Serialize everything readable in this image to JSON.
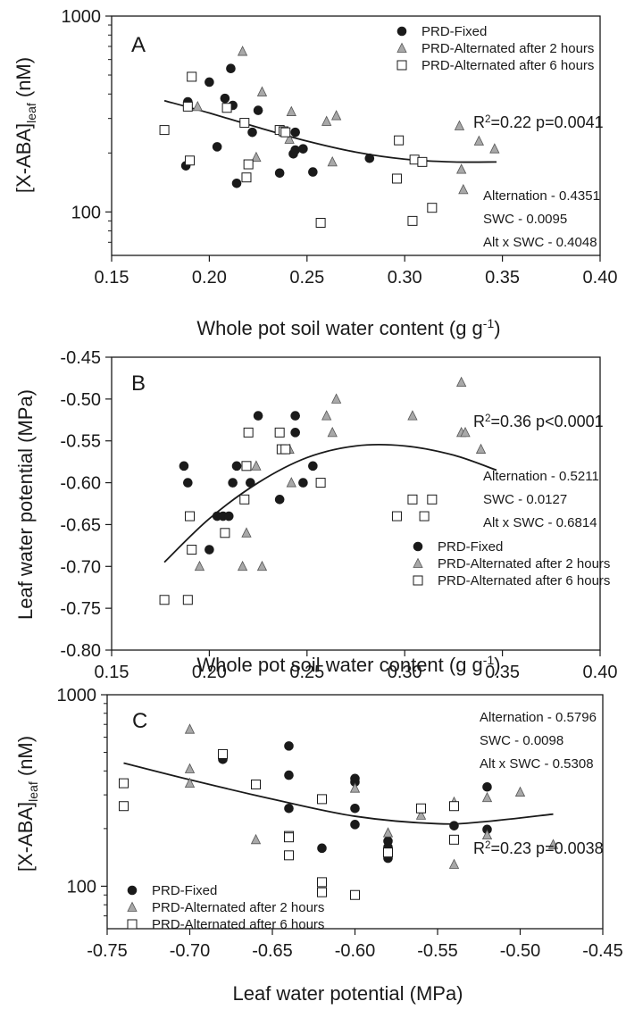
{
  "chart_data": [
    {
      "type": "scatter",
      "panel_label": "A",
      "xlabel": "Whole pot soil water content (g g⁻¹)",
      "ylabel": "[X-ABA]leaf (nM)",
      "yscale": "log",
      "xlim": [
        0.15,
        0.4
      ],
      "ylim": [
        60,
        1000
      ],
      "xticks": [
        0.15,
        0.2,
        0.25,
        0.3,
        0.35,
        0.4
      ],
      "xtick_labels": [
        "0.15",
        "0.20",
        "0.25",
        "0.30",
        "0.35",
        "0.40"
      ],
      "yticks": [
        100,
        1000
      ],
      "ytick_labels": [
        "100",
        "1000"
      ],
      "legend": {
        "position": "top-center",
        "entries": [
          "PRD-Fixed",
          "PRD-Alternated after 2 hours",
          "PRD-Alternated after 6 hours"
        ]
      },
      "annotations": [
        "R2=0.22 p=0.0041",
        "Alternation - 0.4351",
        "SWC - 0.0095",
        "Alt x SWC - 0.4048"
      ],
      "r2_label": {
        "prefix": "R",
        "sup": "2",
        "suffix": "=0.22 p=0.0041"
      },
      "stats": [
        "Alternation - 0.4351",
        "SWC - 0.0095",
        "Alt x SWC - 0.4048"
      ],
      "series": [
        {
          "name": "PRD-Fixed",
          "marker": "circle",
          "color": "#1a1a1a",
          "x": [
            0.188,
            0.189,
            0.2,
            0.204,
            0.208,
            0.211,
            0.212,
            0.214,
            0.222,
            0.225,
            0.236,
            0.243,
            0.244,
            0.244,
            0.248,
            0.253,
            0.282
          ],
          "y": [
            172,
            365,
            460,
            215,
            380,
            540,
            350,
            140,
            255,
            330,
            158,
            198,
            207,
            255,
            210,
            160,
            188
          ]
        },
        {
          "name": "PRD-Alternated after 2 hours",
          "marker": "triangle",
          "color": "#a8a8a8",
          "x": [
            0.194,
            0.217,
            0.224,
            0.227,
            0.241,
            0.242,
            0.26,
            0.263,
            0.265,
            0.328,
            0.329,
            0.33,
            0.338,
            0.346
          ],
          "y": [
            345,
            660,
            190,
            410,
            235,
            325,
            290,
            180,
            310,
            275,
            165,
            130,
            230,
            210
          ]
        },
        {
          "name": "PRD-Alternated after 6 hours",
          "marker": "square",
          "color": "#ffffff",
          "x": [
            0.177,
            0.189,
            0.19,
            0.191,
            0.209,
            0.218,
            0.219,
            0.22,
            0.236,
            0.238,
            0.239,
            0.257,
            0.296,
            0.297,
            0.304,
            0.305,
            0.309,
            0.314
          ],
          "y": [
            262,
            345,
            183,
            490,
            340,
            285,
            150,
            175,
            262,
            258,
            255,
            88,
            148,
            232,
            90,
            185,
            180,
            105
          ]
        }
      ],
      "fit": {
        "x": [
          0.177,
          0.2,
          0.225,
          0.25,
          0.275,
          0.3,
          0.325,
          0.347
        ],
        "y": [
          370,
          320,
          270,
          230,
          202,
          186,
          180,
          180
        ]
      }
    },
    {
      "type": "scatter",
      "panel_label": "B",
      "xlabel": "Whole pot soil water content (g g⁻¹)",
      "ylabel": "Leaf water potential (MPa)",
      "yscale": "linear",
      "xlim": [
        0.15,
        0.4
      ],
      "ylim": [
        -0.8,
        -0.45
      ],
      "xticks": [
        0.15,
        0.2,
        0.25,
        0.3,
        0.35,
        0.4
      ],
      "xtick_labels": [
        "0.15",
        "0.20",
        "0.25",
        "0.30",
        "0.35",
        "0.40"
      ],
      "yticks": [
        -0.8,
        -0.75,
        -0.7,
        -0.65,
        -0.6,
        -0.55,
        -0.5,
        -0.45
      ],
      "ytick_labels": [
        "-0.80",
        "-0.75",
        "-0.70",
        "-0.65",
        "-0.60",
        "-0.55",
        "-0.50",
        "-0.45"
      ],
      "legend": {
        "position": "bottom-right",
        "entries": [
          "PRD-Fixed",
          "PRD-Alternated after 2 hours",
          "PRD-Alternated after 6 hours"
        ]
      },
      "annotations": [
        "R2=0.36 p<0.0001",
        "Alternation - 0.5211",
        "SWC - 0.0127",
        "Alt x SWC - 0.6814"
      ],
      "r2_label": {
        "prefix": "R",
        "sup": "2",
        "suffix": "=0.36 p<0.0001"
      },
      "stats": [
        "Alternation - 0.5211",
        "SWC - 0.0127",
        "Alt x SWC - 0.6814"
      ],
      "series": [
        {
          "name": "PRD-Fixed",
          "marker": "circle",
          "color": "#1a1a1a",
          "x": [
            0.187,
            0.189,
            0.2,
            0.204,
            0.207,
            0.21,
            0.212,
            0.214,
            0.221,
            0.225,
            0.236,
            0.244,
            0.244,
            0.248,
            0.253
          ],
          "y": [
            -0.58,
            -0.6,
            -0.68,
            -0.64,
            -0.64,
            -0.64,
            -0.6,
            -0.58,
            -0.6,
            -0.52,
            -0.62,
            -0.54,
            -0.52,
            -0.6,
            -0.58
          ]
        },
        {
          "name": "PRD-Alternated after 2 hours",
          "marker": "triangle",
          "color": "#a8a8a8",
          "x": [
            0.195,
            0.217,
            0.219,
            0.224,
            0.227,
            0.241,
            0.242,
            0.26,
            0.263,
            0.265,
            0.304,
            0.329,
            0.329,
            0.331,
            0.339
          ],
          "y": [
            -0.7,
            -0.7,
            -0.66,
            -0.58,
            -0.7,
            -0.56,
            -0.6,
            -0.52,
            -0.54,
            -0.5,
            -0.52,
            -0.48,
            -0.54,
            -0.54,
            -0.56
          ]
        },
        {
          "name": "PRD-Alternated after 6 hours",
          "marker": "square",
          "color": "#ffffff",
          "x": [
            0.177,
            0.189,
            0.19,
            0.191,
            0.208,
            0.218,
            0.219,
            0.22,
            0.236,
            0.237,
            0.239,
            0.257,
            0.296,
            0.304,
            0.31,
            0.314
          ],
          "y": [
            -0.74,
            -0.74,
            -0.64,
            -0.68,
            -0.66,
            -0.62,
            -0.58,
            -0.54,
            -0.54,
            -0.56,
            -0.56,
            -0.6,
            -0.64,
            -0.62,
            -0.64,
            -0.62
          ]
        }
      ],
      "fit": {
        "x": [
          0.177,
          0.2,
          0.225,
          0.25,
          0.275,
          0.3,
          0.325,
          0.347
        ],
        "y": [
          -0.695,
          -0.643,
          -0.6,
          -0.57,
          -0.556,
          -0.556,
          -0.567,
          -0.585
        ]
      }
    },
    {
      "type": "scatter",
      "panel_label": "C",
      "xlabel": "Leaf water potential (MPa)",
      "ylabel": "[X-ABA]leaf (nM)",
      "yscale": "log",
      "xlim": [
        -0.75,
        -0.45
      ],
      "ylim": [
        60,
        1000
      ],
      "xticks": [
        -0.75,
        -0.7,
        -0.65,
        -0.6,
        -0.55,
        -0.5,
        -0.45
      ],
      "xtick_labels": [
        "-0.75",
        "-0.70",
        "-0.65",
        "-0.60",
        "-0.55",
        "-0.50",
        "-0.45"
      ],
      "yticks": [
        100,
        1000
      ],
      "ytick_labels": [
        "100",
        "1000"
      ],
      "legend": {
        "position": "bottom-left",
        "entries": [
          "PRD-Fixed",
          "PRD-Alternated after 2 hours",
          "PRD-Alternated after 6 hours"
        ]
      },
      "annotations": [
        "R2=0.23 p=0.0038",
        "Alternation - 0.5796",
        "SWC - 0.0098",
        "Alt x SWC - 0.5308"
      ],
      "r2_label": {
        "prefix": "R",
        "sup": "2",
        "suffix": "=0.23 p=0.0038"
      },
      "stats": [
        "Alternation - 0.5796",
        "SWC - 0.0098",
        "Alt x SWC - 0.5308"
      ],
      "series": [
        {
          "name": "PRD-Fixed",
          "marker": "circle",
          "color": "#1a1a1a",
          "x": [
            -0.68,
            -0.64,
            -0.64,
            -0.64,
            -0.62,
            -0.6,
            -0.6,
            -0.6,
            -0.6,
            -0.58,
            -0.58,
            -0.58,
            -0.58,
            -0.54,
            -0.52,
            -0.52
          ],
          "y": [
            460,
            540,
            380,
            255,
            158,
            365,
            350,
            255,
            210,
            172,
            160,
            150,
            140,
            207,
            330,
            198
          ]
        },
        {
          "name": "PRD-Alternated after 2 hours",
          "marker": "triangle",
          "color": "#a8a8a8",
          "x": [
            -0.7,
            -0.7,
            -0.7,
            -0.66,
            -0.6,
            -0.58,
            -0.56,
            -0.54,
            -0.54,
            -0.52,
            -0.52,
            -0.5,
            -0.48
          ],
          "y": [
            660,
            410,
            345,
            175,
            325,
            190,
            235,
            275,
            130,
            290,
            185,
            310,
            165
          ]
        },
        {
          "name": "PRD-Alternated after 6 hours",
          "marker": "square",
          "color": "#ffffff",
          "x": [
            -0.74,
            -0.74,
            -0.68,
            -0.66,
            -0.64,
            -0.64,
            -0.64,
            -0.62,
            -0.62,
            -0.62,
            -0.6,
            -0.58,
            -0.56,
            -0.54,
            -0.54
          ],
          "y": [
            345,
            262,
            490,
            340,
            183,
            180,
            145,
            285,
            105,
            93,
            90,
            150,
            255,
            262,
            175
          ]
        }
      ],
      "fit": {
        "x": [
          -0.74,
          -0.7,
          -0.65,
          -0.6,
          -0.55,
          -0.52,
          -0.48
        ],
        "y": [
          440,
          360,
          285,
          232,
          212,
          218,
          238
        ]
      }
    }
  ]
}
